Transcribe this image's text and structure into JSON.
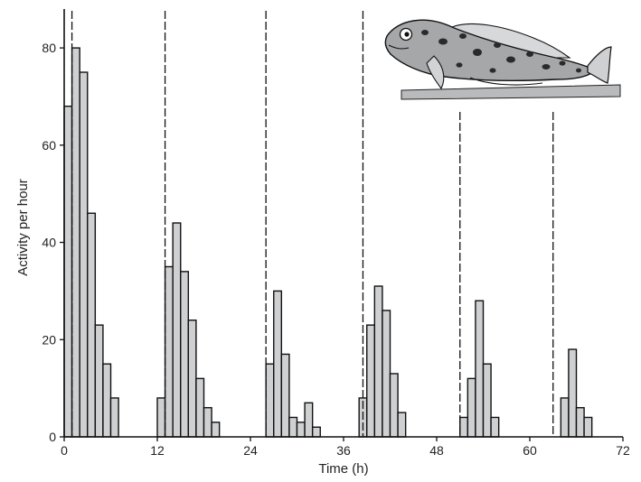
{
  "chart_data": {
    "type": "bar",
    "title": "",
    "xlabel": "Time (h)",
    "ylabel": "Activity per hour",
    "xlim": [
      0,
      72
    ],
    "ylim": [
      0,
      88
    ],
    "xticks": [
      0,
      12,
      24,
      36,
      48,
      60,
      72
    ],
    "yticks": [
      0,
      20,
      40,
      60,
      80
    ],
    "grid": false,
    "bar_fill": "#cfd0d2",
    "bar_stroke": "#111111",
    "bins": [
      {
        "x": 0,
        "value": 68
      },
      {
        "x": 1,
        "value": 80
      },
      {
        "x": 2,
        "value": 75
      },
      {
        "x": 3,
        "value": 46
      },
      {
        "x": 4,
        "value": 23
      },
      {
        "x": 5,
        "value": 15
      },
      {
        "x": 6,
        "value": 8
      },
      {
        "x": 12,
        "value": 8
      },
      {
        "x": 13,
        "value": 35
      },
      {
        "x": 14,
        "value": 44
      },
      {
        "x": 15,
        "value": 34
      },
      {
        "x": 16,
        "value": 24
      },
      {
        "x": 17,
        "value": 12
      },
      {
        "x": 18,
        "value": 6
      },
      {
        "x": 19,
        "value": 3
      },
      {
        "x": 26,
        "value": 15
      },
      {
        "x": 27,
        "value": 30
      },
      {
        "x": 28,
        "value": 17
      },
      {
        "x": 29,
        "value": 4
      },
      {
        "x": 30,
        "value": 3
      },
      {
        "x": 31,
        "value": 7
      },
      {
        "x": 32,
        "value": 2
      },
      {
        "x": 38,
        "value": 8
      },
      {
        "x": 39,
        "value": 23
      },
      {
        "x": 40,
        "value": 31
      },
      {
        "x": 41,
        "value": 26
      },
      {
        "x": 42,
        "value": 13
      },
      {
        "x": 43,
        "value": 5
      },
      {
        "x": 51,
        "value": 4
      },
      {
        "x": 52,
        "value": 12
      },
      {
        "x": 53,
        "value": 28
      },
      {
        "x": 54,
        "value": 15
      },
      {
        "x": 55,
        "value": 4
      },
      {
        "x": 64,
        "value": 8
      },
      {
        "x": 65,
        "value": 18
      },
      {
        "x": 66,
        "value": 6
      },
      {
        "x": 67,
        "value": 4
      }
    ],
    "reference_lines_x": [
      1,
      13,
      26,
      38.5,
      51,
      63
    ],
    "inset": "blenny-fish-illustration"
  }
}
